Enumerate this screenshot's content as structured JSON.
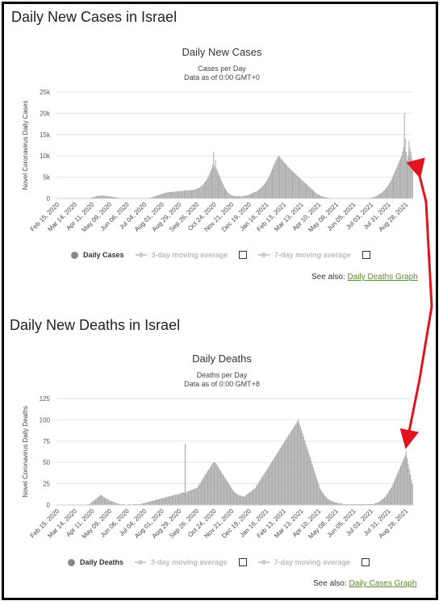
{
  "cases_section": {
    "heading": "Daily New Cases in Israel",
    "see_also_prefix": "See also:",
    "see_also_link": "Daily Deaths Graph",
    "legend": {
      "primary": "Daily Cases",
      "ma3": "3-day moving average",
      "ma7": "7-day moving average"
    }
  },
  "deaths_section": {
    "heading": "Daily New Deaths in Israel",
    "see_also_prefix": "See also:",
    "see_also_link": "Daily Cases Graph",
    "legend": {
      "primary": "Daily Deaths",
      "ma3": "3-day moving average",
      "ma7": "7-day moving average"
    }
  },
  "colors": {
    "bar": "#a8a8a8",
    "arrow": "#e0141e",
    "link": "#5a8a2e",
    "grid": "#e6e6e6"
  },
  "chart_data": [
    {
      "type": "bar",
      "title": "Daily New Cases",
      "subtitle_line1": "Cases per Day",
      "subtitle_line2": "Data as of 0:00 GMT+0",
      "ylabel": "Novel Coronavirus Daily Cases",
      "ylim": [
        0,
        25000
      ],
      "yticks": [
        0,
        5000,
        10000,
        15000,
        20000,
        25000
      ],
      "ytick_labels": [
        "0",
        "5k",
        "10k",
        "15k",
        "20k",
        "25k"
      ],
      "x_tick_labels": [
        "Feb 15, 2020",
        "Mar 14, 2020",
        "Apr 11, 2020",
        "May 09, 2020",
        "Jun 06, 2020",
        "Jul 04, 2020",
        "Aug 01, 2020",
        "Aug 29, 2020",
        "Sep 26, 2020",
        "Oct 24, 2020",
        "Nov 21, 2020",
        "Dec 19, 2020",
        "Jan 16, 2021",
        "Feb 13, 2021",
        "Mar 13, 2021",
        "Apr 10, 2021",
        "May 08, 2021",
        "Jun 05, 2021",
        "Jul 03, 2021",
        "Jul 31, 2021",
        "Aug 28, 2021"
      ],
      "grid": true,
      "series": [
        {
          "name": "Daily Cases",
          "values": [
            0,
            0,
            0,
            0,
            0,
            0,
            0,
            0,
            0,
            0,
            0,
            0,
            0,
            0,
            0,
            0,
            0,
            0,
            0,
            0,
            0,
            0,
            0,
            0,
            0,
            2,
            3,
            5,
            8,
            10,
            15,
            25,
            40,
            55,
            80,
            100,
            130,
            170,
            220,
            280,
            330,
            380,
            450,
            520,
            560,
            600,
            620,
            650,
            680,
            700,
            690,
            650,
            620,
            600,
            580,
            560,
            540,
            500,
            470,
            430,
            400,
            370,
            340,
            300,
            270,
            240,
            210,
            180,
            160,
            140,
            120,
            100,
            90,
            80,
            70,
            60,
            50,
            40,
            35,
            30,
            28,
            25,
            22,
            20,
            18,
            16,
            15,
            15,
            16,
            18,
            20,
            22,
            25,
            30,
            35,
            40,
            50,
            60,
            80,
            100,
            130,
            160,
            200,
            250,
            300,
            360,
            420,
            500,
            580,
            660,
            740,
            820,
            900,
            980,
            1050,
            1120,
            1190,
            1250,
            1300,
            1350,
            1400,
            1450,
            1480,
            1500,
            1520,
            1540,
            1560,
            1580,
            1600,
            1620,
            1640,
            1660,
            1680,
            1700,
            1720,
            1740,
            1760,
            1780,
            1800,
            1820,
            1840,
            1860,
            1880,
            1900,
            1920,
            1940,
            1960,
            1980,
            2000,
            2050,
            2100,
            2150,
            2200,
            2300,
            2400,
            2500,
            2600,
            2800,
            3000,
            3200,
            3400,
            3700,
            4000,
            4300,
            4600,
            5000,
            5500,
            6000,
            6500,
            7000,
            8000,
            11000,
            7500,
            9000,
            7000,
            6500,
            6000,
            5500,
            5000,
            4500,
            4000,
            3500,
            3000,
            2600,
            2200,
            1900,
            1600,
            1300,
            1100,
            900,
            800,
            700,
            650,
            600,
            580,
            560,
            550,
            540,
            530,
            520,
            510,
            500,
            520,
            540,
            560,
            600,
            650,
            700,
            750,
            800,
            900,
            1000,
            1100,
            1200,
            1300,
            1400,
            1500,
            1600,
            1700,
            1800,
            2000,
            2200,
            2400,
            2600,
            2800,
            3000,
            3300,
            3600,
            3900,
            4200,
            4600,
            5000,
            5500,
            6000,
            6500,
            7000,
            7500,
            8000,
            8500,
            9000,
            9500,
            9800,
            10000,
            9800,
            9500,
            9200,
            9000,
            8700,
            8500,
            8200,
            8000,
            7800,
            7500,
            7300,
            7000,
            6800,
            6600,
            6400,
            6200,
            6000,
            5800,
            5600,
            5400,
            5200,
            5000,
            4800,
            4600,
            4400,
            4200,
            4000,
            3800,
            3600,
            3400,
            3200,
            3000,
            2800,
            2600,
            2400,
            2200,
            2000,
            1800,
            1600,
            1400,
            1200,
            1000,
            900,
            800,
            700,
            600,
            500,
            450,
            400,
            350,
            300,
            250,
            200,
            180,
            160,
            140,
            120,
            100,
            90,
            80,
            70,
            60,
            55,
            50,
            45,
            40,
            35,
            30,
            28,
            26,
            24,
            22,
            20,
            18,
            16,
            15,
            14,
            13,
            12,
            11,
            10,
            10,
            10,
            11,
            12,
            13,
            14,
            15,
            16,
            18,
            20,
            22,
            25,
            30,
            40,
            50,
            60,
            80,
            100,
            130,
            170,
            220,
            280,
            350,
            430,
            520,
            620,
            740,
            870,
            1000,
            1150,
            1300,
            1500,
            1700,
            1900,
            2100,
            2400,
            2700,
            3000,
            3300,
            3700,
            4100,
            4500,
            5000,
            5500,
            6000,
            6500,
            7000,
            7500,
            8000,
            8500,
            9000,
            9500,
            10000,
            11000,
            12000,
            20000,
            14000,
            11000,
            9000,
            10000,
            13500,
            12000,
            11000,
            9500,
            8000
          ]
        }
      ]
    },
    {
      "type": "bar",
      "title": "Daily Deaths",
      "subtitle_line1": "Deaths per Day",
      "subtitle_line2": "Data as of 0:00 GMT+8",
      "ylabel": "Novel Coronavirus Daily Deaths",
      "ylim": [
        0,
        125
      ],
      "yticks": [
        0,
        25,
        50,
        75,
        100,
        125
      ],
      "ytick_labels": [
        "0",
        "25",
        "50",
        "75",
        "100",
        "125"
      ],
      "x_tick_labels": [
        "Feb 15, 2020",
        "Mar 14, 2020",
        "Apr 11, 2020",
        "May 09, 2020",
        "Jun 06, 2020",
        "Jul 04, 2020",
        "Aug 01, 2020",
        "Aug 29, 2020",
        "Sep 26, 2020",
        "Oct 24, 2020",
        "Nov 21, 2020",
        "Dec 19, 2020",
        "Jan 16, 2021",
        "Feb 13, 2021",
        "Mar 13, 2021",
        "Apr 10, 2021",
        "May 08, 2021",
        "Jun 05, 2021",
        "Jul 03, 2021",
        "Jul 31, 2021",
        "Aug 28, 2021"
      ],
      "grid": true,
      "series": [
        {
          "name": "Daily Deaths",
          "values": [
            0,
            0,
            0,
            0,
            0,
            0,
            0,
            0,
            0,
            0,
            0,
            0,
            0,
            0,
            0,
            0,
            0,
            0,
            0,
            0,
            0,
            0,
            0,
            0,
            0,
            0,
            0,
            0,
            0,
            1,
            1,
            2,
            3,
            4,
            5,
            6,
            7,
            8,
            9,
            10,
            11,
            12,
            11,
            10,
            9,
            8,
            8,
            7,
            6,
            5,
            5,
            4,
            4,
            3,
            3,
            2,
            2,
            2,
            1,
            1,
            1,
            1,
            1,
            0,
            0,
            0,
            1,
            1,
            1,
            0,
            0,
            1,
            1,
            1,
            0,
            1,
            1,
            1,
            1,
            2,
            2,
            2,
            3,
            3,
            3,
            4,
            4,
            4,
            5,
            5,
            5,
            6,
            6,
            6,
            7,
            7,
            7,
            8,
            8,
            8,
            9,
            9,
            9,
            10,
            10,
            10,
            11,
            11,
            11,
            12,
            12,
            12,
            13,
            13,
            13,
            14,
            14,
            15,
            15,
            72,
            14,
            16,
            16,
            17,
            17,
            18,
            18,
            19,
            19,
            20,
            20,
            22,
            24,
            26,
            28,
            30,
            32,
            34,
            36,
            38,
            40,
            42,
            44,
            46,
            48,
            50,
            50,
            50,
            48,
            46,
            44,
            42,
            40,
            38,
            36,
            34,
            32,
            30,
            28,
            26,
            24,
            22,
            20,
            18,
            16,
            15,
            14,
            13,
            12,
            12,
            11,
            11,
            10,
            10,
            10,
            11,
            12,
            13,
            14,
            15,
            16,
            17,
            18,
            19,
            20,
            22,
            24,
            26,
            28,
            30,
            32,
            34,
            36,
            38,
            40,
            42,
            44,
            46,
            48,
            50,
            52,
            54,
            56,
            58,
            60,
            62,
            64,
            66,
            68,
            70,
            72,
            74,
            76,
            78,
            80,
            82,
            84,
            86,
            88,
            90,
            92,
            94,
            96,
            98,
            100,
            96,
            92,
            88,
            84,
            80,
            76,
            72,
            68,
            64,
            60,
            56,
            52,
            48,
            44,
            40,
            36,
            32,
            28,
            24,
            20,
            18,
            16,
            14,
            12,
            10,
            9,
            8,
            7,
            6,
            5,
            5,
            4,
            4,
            3,
            3,
            3,
            2,
            2,
            2,
            2,
            1,
            1,
            1,
            1,
            1,
            1,
            1,
            1,
            1,
            1,
            1,
            1,
            1,
            1,
            1,
            1,
            1,
            1,
            1,
            1,
            1,
            1,
            1,
            1,
            1,
            1,
            1,
            1,
            1,
            1,
            2,
            2,
            3,
            3,
            4,
            5,
            6,
            7,
            8,
            9,
            10,
            12,
            14,
            16,
            18,
            20,
            22,
            25,
            28,
            31,
            34,
            37,
            40,
            43,
            46,
            49,
            52,
            55,
            58,
            63,
            55,
            48,
            42,
            36,
            30,
            25
          ]
        }
      ]
    }
  ]
}
